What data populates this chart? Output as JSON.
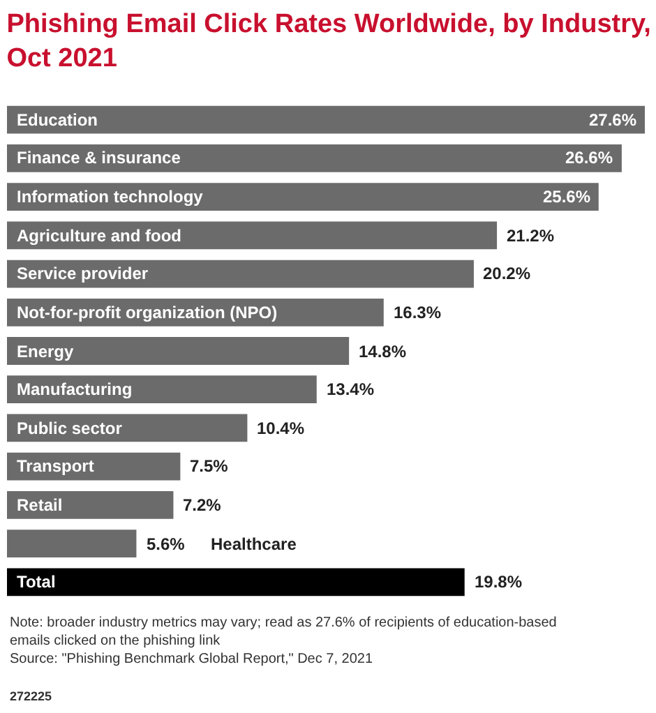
{
  "chart_data": {
    "type": "bar",
    "orientation": "horizontal",
    "title": "Phishing Email Click Rates Worldwide, by Industry, Oct 2021",
    "categories": [
      "Education",
      "Finance & insurance",
      "Information technology",
      "Agriculture and food",
      "Service provider",
      "Not-for-profit organization (NPO)",
      "Energy",
      "Manufacturing",
      "Public sector",
      "Transport",
      "Retail",
      "Healthcare",
      "Total"
    ],
    "values": [
      27.6,
      26.6,
      25.6,
      21.2,
      20.2,
      16.3,
      14.8,
      13.4,
      10.4,
      7.5,
      7.2,
      5.6,
      19.8
    ],
    "colors": [
      "#6b6b6b",
      "#6b6b6b",
      "#6b6b6b",
      "#6b6b6b",
      "#6b6b6b",
      "#6b6b6b",
      "#6b6b6b",
      "#6b6b6b",
      "#6b6b6b",
      "#6b6b6b",
      "#6b6b6b",
      "#6b6b6b",
      "#000000"
    ],
    "value_labels": [
      "27.6%",
      "26.6%",
      "25.6%",
      "21.2%",
      "20.2%",
      "16.3%",
      "14.8%",
      "13.4%",
      "10.4%",
      "7.5%",
      "7.2%",
      "5.6%",
      "19.8%"
    ],
    "annotations": [
      "Note: broader industry metrics may vary; read as 27.6% of recipients of education-based emails clicked on the phishing link",
      "Source: \"Phishing Benchmark Global Report,\" Dec 7, 2021",
      "272225"
    ]
  }
}
